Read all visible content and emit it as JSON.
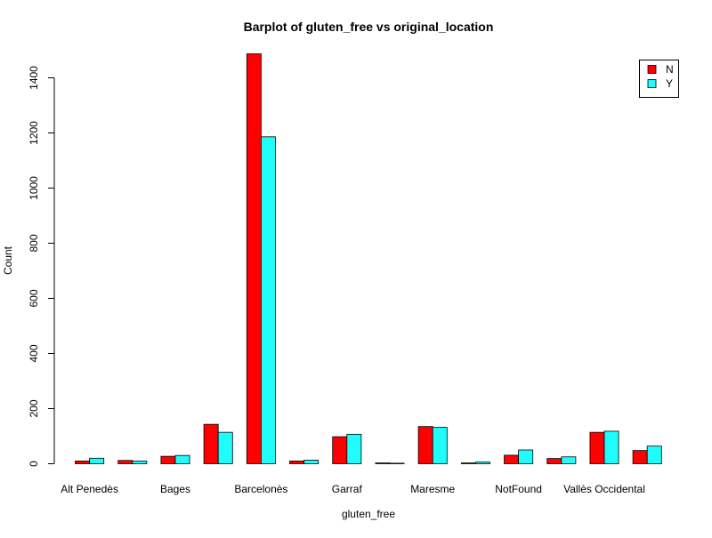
{
  "chart_data": {
    "type": "bar",
    "title": "Barplot of gluten_free vs original_location",
    "xlabel": "gluten_free",
    "ylabel": "Count",
    "ylim": [
      0,
      1500
    ],
    "yticks": [
      0,
      200,
      400,
      600,
      800,
      1000,
      1200,
      1400
    ],
    "categories": [
      "Alt Penedès",
      "",
      "Bages",
      "",
      "Barcelonès",
      "",
      "Garraf",
      "",
      "Maresme",
      "",
      "NotFound",
      "",
      "Vallès Occidental",
      ""
    ],
    "legend": {
      "position": "top-right"
    },
    "grid": false,
    "series": [
      {
        "name": "N",
        "color": "#ff0000",
        "values": [
          10,
          12,
          27,
          143,
          1487,
          10,
          98,
          3,
          135,
          3,
          31,
          19,
          114,
          48
        ]
      },
      {
        "name": "Y",
        "color": "#1ffcfc",
        "values": [
          20,
          10,
          30,
          114,
          1186,
          13,
          107,
          2,
          132,
          6,
          50,
          25,
          118,
          64
        ]
      }
    ]
  }
}
